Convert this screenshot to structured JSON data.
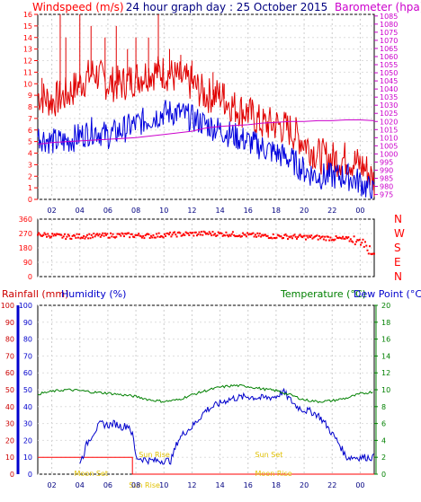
{
  "page": {
    "title": "24 hour graph day : 25 October 2015",
    "background": "#ffffff"
  },
  "x_axis": {
    "tick_labels": [
      "02",
      "04",
      "06",
      "08",
      "10",
      "12",
      "14",
      "16",
      "18",
      "20",
      "22",
      "00"
    ],
    "range_hours": [
      1,
      25
    ]
  },
  "chart_data": [
    {
      "type": "line",
      "id": "wind-baro",
      "title": "24 hour graph day : 25 October 2015",
      "left_axis": {
        "label": "Windspeed (m/s)",
        "range": [
          0,
          16
        ],
        "ticks": [
          "0",
          "1",
          "2",
          "3",
          "4",
          "5",
          "6",
          "7",
          "8",
          "9",
          "10",
          "11",
          "12",
          "13",
          "14",
          "15",
          "16"
        ],
        "color": "#ff0000"
      },
      "right_axis": {
        "label": "Barometer (hpa)",
        "range": [
          972,
          1086
        ],
        "ticks": [
          "975",
          "980",
          "985",
          "990",
          "995",
          "1000",
          "1005",
          "1010",
          "1015",
          "1020",
          "1025",
          "1030",
          "1035",
          "1040",
          "1045",
          "1050",
          "1055",
          "1060",
          "1065",
          "1070",
          "1075",
          "1080",
          "1085"
        ],
        "color": "#cc00cc"
      },
      "grid": true,
      "series": [
        {
          "role": "gust",
          "color": "#e00000",
          "x": [
            1.0,
            2,
            3,
            4,
            5,
            6,
            7,
            8,
            9,
            10,
            11,
            12,
            13,
            14,
            15,
            16,
            17,
            18,
            19,
            20,
            21,
            22,
            23,
            24,
            24.5,
            25.0
          ],
          "y": [
            9.0,
            8.5,
            9.0,
            10.0,
            11.0,
            10.0,
            10.0,
            10.5,
            11.0,
            11.0,
            10.5,
            10.0,
            9.0,
            9.0,
            8.0,
            7.5,
            6.5,
            6.5,
            6.0,
            5.0,
            3.8,
            3.5,
            3.5,
            3.0,
            2.5,
            1.5
          ],
          "spikes": [
            [
              1.3,
              10.5
            ],
            [
              2.6,
              16
            ],
            [
              3.0,
              14
            ],
            [
              4.0,
              16
            ],
            [
              4.8,
              15
            ],
            [
              5.8,
              14
            ],
            [
              6.6,
              15
            ],
            [
              7.4,
              13
            ],
            [
              8.0,
              14
            ],
            [
              8.9,
              14
            ],
            [
              9.6,
              16
            ],
            [
              10.4,
              13
            ],
            [
              11.2,
              12.5
            ],
            [
              12.0,
              12
            ],
            [
              13.5,
              11
            ],
            [
              14.3,
              10
            ],
            [
              16.0,
              8
            ],
            [
              18.0,
              7
            ]
          ]
        },
        {
          "role": "average",
          "color": "#0000dd",
          "x": [
            1.0,
            2,
            3,
            4,
            5,
            6,
            7,
            8,
            9,
            10,
            11,
            12,
            13,
            14,
            15,
            16,
            17,
            18,
            19,
            20,
            21,
            22,
            23,
            24,
            24.5,
            25.0
          ],
          "y": [
            5.5,
            5.0,
            5.0,
            5.5,
            6.0,
            5.5,
            6.0,
            6.5,
            7.0,
            7.5,
            7.5,
            7.0,
            6.5,
            6.0,
            5.5,
            5.0,
            4.5,
            4.0,
            3.5,
            2.5,
            2.0,
            2.0,
            2.0,
            1.5,
            1.0,
            0.5
          ]
        },
        {
          "role": "pressure",
          "color": "#cc00cc",
          "x": [
            1,
            2,
            4,
            6,
            8,
            10,
            12,
            13,
            14,
            15,
            16,
            17,
            18,
            19,
            20,
            21,
            22,
            23,
            24,
            25
          ],
          "y": [
            1006,
            1007,
            1008,
            1009,
            1010,
            1012,
            1014,
            1016,
            1017,
            1017.5,
            1018,
            1019,
            1019.5,
            1020,
            1020,
            1020.5,
            1020.5,
            1021,
            1021,
            1020.5
          ]
        }
      ]
    },
    {
      "type": "scatter",
      "id": "wind-direction",
      "left_axis": {
        "range": [
          0,
          360
        ],
        "ticks": [
          "0",
          "90",
          "180",
          "270",
          "360"
        ]
      },
      "right_axis_labels": [
        "N",
        "W",
        "S",
        "E",
        "N"
      ],
      "color": "#ff0000",
      "x": [
        1,
        3,
        5,
        7,
        9,
        11,
        13,
        15,
        17,
        19,
        21,
        23,
        24,
        24.5,
        25
      ],
      "y": [
        265,
        250,
        255,
        260,
        255,
        265,
        270,
        265,
        255,
        250,
        245,
        235,
        220,
        200,
        130
      ]
    },
    {
      "type": "line",
      "id": "rain-humidity-temp",
      "left_axis_1": {
        "label": "Rainfall (mm)",
        "range": [
          0,
          100
        ],
        "ticks": [
          "0",
          "10",
          "20",
          "30",
          "40",
          "50",
          "60",
          "70",
          "80",
          "90",
          "100"
        ],
        "color": "#ff0000"
      },
      "left_axis_2": {
        "label": "Humidity (%)",
        "range": [
          0,
          100
        ],
        "ticks": [
          "0",
          "10",
          "20",
          "30",
          "40",
          "50",
          "60",
          "70",
          "80",
          "90",
          "100"
        ],
        "color": "#0000cc"
      },
      "right_axis": {
        "label": "Temperature (°C)",
        "label_2": "Dew Point (°C)",
        "range": [
          0,
          20
        ],
        "ticks": [
          "0",
          "2",
          "4",
          "6",
          "8",
          "10",
          "12",
          "14",
          "16",
          "18",
          "20"
        ],
        "color": "#008000"
      },
      "grid": true,
      "series": [
        {
          "role": "rainfall",
          "color": "#ff0000",
          "x": [
            0.5,
            7.75,
            7.75,
            25.0
          ],
          "y": [
            2.0,
            2.0,
            0,
            0
          ]
        },
        {
          "role": "humidity",
          "color": "#0000cc",
          "x": [
            4,
            4.2,
            4.5,
            5,
            5.5,
            6,
            6.5,
            7,
            7.5,
            7.8,
            8,
            8.5,
            9,
            10,
            10.5,
            11,
            11.5,
            12,
            12.5,
            13,
            13.5,
            14,
            14.5,
            15,
            16,
            17,
            18,
            18.5,
            19,
            19.5,
            20,
            20.5,
            21,
            21.5,
            22,
            22.5,
            23,
            24,
            25
          ],
          "y": [
            8,
            10,
            18,
            25,
            30,
            29,
            30,
            28,
            29,
            22,
            10,
            9,
            8,
            8,
            8,
            20,
            25,
            28,
            33,
            38,
            40,
            42,
            44,
            45,
            46,
            45,
            46,
            49,
            44,
            40,
            38,
            37,
            35,
            30,
            24,
            18,
            10,
            10,
            10
          ]
        },
        {
          "role": "temperature",
          "color": "#008000",
          "x": [
            1,
            2,
            3,
            4,
            5,
            6,
            7,
            8,
            9,
            10,
            11,
            12,
            13,
            14,
            15,
            16,
            17,
            18,
            19,
            20,
            21,
            22,
            23,
            24,
            25
          ],
          "y": [
            9.5,
            9.8,
            10.0,
            9.9,
            9.7,
            9.6,
            9.4,
            9.2,
            8.8,
            8.6,
            8.8,
            9.4,
            9.9,
            10.3,
            10.5,
            10.4,
            10.1,
            9.9,
            9.4,
            8.8,
            8.6,
            8.7,
            9.0,
            9.5,
            9.8
          ]
        }
      ],
      "annotations": [
        {
          "text": "Moon Set",
          "x": 3.6,
          "y": -0.2,
          "color": "#e0c000"
        },
        {
          "text": "Sun Rise",
          "x": 8.2,
          "y": 2.0,
          "color": "#e0c000"
        },
        {
          "text": "Sun Set",
          "x": 16.5,
          "y": 2.0,
          "color": "#e0c000"
        },
        {
          "text": "Moon Rise",
          "x": 16.5,
          "y": -0.2,
          "color": "#e0c000"
        },
        {
          "text": "Sun Rise",
          "x": 7.5,
          "y": -6,
          "color": "#e0c000"
        }
      ]
    }
  ]
}
